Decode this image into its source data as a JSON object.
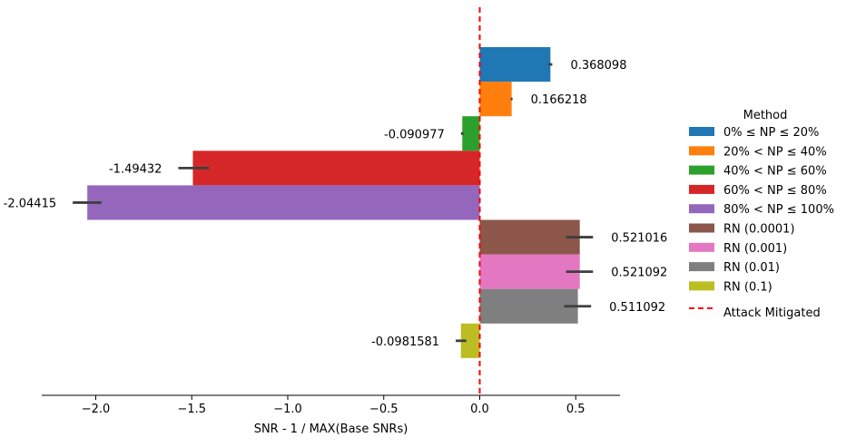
{
  "chart_data": {
    "type": "bar",
    "orientation": "horizontal",
    "xlabel": "SNR - 1 / MAX(Base SNRs)",
    "ylabel": "",
    "xlim": [
      -2.25,
      0.7
    ],
    "xticks": [
      -2.0,
      -1.5,
      -1.0,
      -0.5,
      0.0,
      0.5
    ],
    "xtick_labels": [
      "−2.0",
      "−1.5",
      "−1.0",
      "−0.5",
      "0.0",
      "0.5"
    ],
    "series": [
      {
        "name": "0% ≤ NP ≤ 20%",
        "value": 0.368098,
        "label": "0.368098",
        "err_low": 0.358,
        "err_high": 0.378,
        "color": "#1f77b4"
      },
      {
        "name": "20% < NP ≤ 40%",
        "value": 0.166218,
        "label": "0.166218",
        "err_low": 0.161,
        "err_high": 0.171,
        "color": "#ff7f0e"
      },
      {
        "name": "40% < NP ≤ 60%",
        "value": -0.090977,
        "label": "-0.090977",
        "err_low": -0.098,
        "err_high": -0.084,
        "color": "#2ca02c"
      },
      {
        "name": "60% < NP ≤ 80%",
        "value": -1.49432,
        "label": "-1.49432",
        "err_low": -1.57,
        "err_high": -1.41,
        "color": "#d62728"
      },
      {
        "name": "80% < NP ≤ 100%",
        "value": -2.04415,
        "label": "-2.04415",
        "err_low": -2.12,
        "err_high": -1.97,
        "color": "#9467bd"
      },
      {
        "name": "RN (0.0001)",
        "value": 0.521016,
        "label": "0.521016",
        "err_low": 0.45,
        "err_high": 0.59,
        "color": "#8c564b"
      },
      {
        "name": "RN (0.001)",
        "value": 0.521092,
        "label": "0.521092",
        "err_low": 0.45,
        "err_high": 0.59,
        "color": "#e377c2"
      },
      {
        "name": "RN (0.01)",
        "value": 0.511092,
        "label": "0.511092",
        "err_low": 0.44,
        "err_high": 0.58,
        "color": "#7f7f7f"
      },
      {
        "name": "RN (0.1)",
        "value": -0.0981581,
        "label": "-0.0981581",
        "err_low": -0.125,
        "err_high": -0.07,
        "color": "#bcbd22"
      }
    ],
    "reference_line": {
      "x": 0.0,
      "label": "Attack Mitigated",
      "color": "#ff0000",
      "style": "dashed"
    },
    "legend": {
      "title": "Method",
      "placement": "right"
    }
  }
}
